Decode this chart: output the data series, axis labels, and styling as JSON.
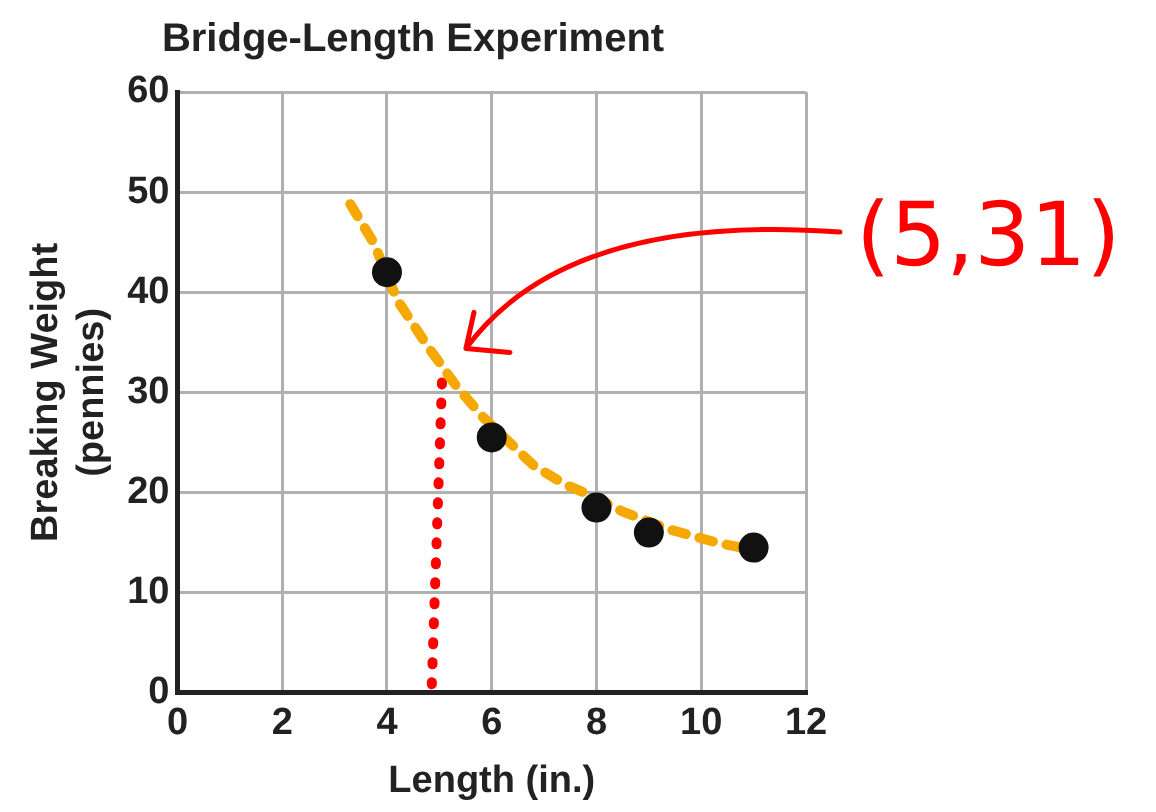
{
  "chart_data": {
    "type": "scatter",
    "title": "Bridge-Length Experiment",
    "xlabel": "Length (in.)",
    "ylabel": "Breaking Weight\n(pennies)",
    "xlim": [
      0,
      12
    ],
    "xticks": [
      0,
      2,
      4,
      6,
      8,
      10,
      12
    ],
    "ylim": [
      0,
      60
    ],
    "yticks": [
      0,
      10,
      20,
      30,
      40,
      50,
      60
    ],
    "grid": true,
    "legend": false,
    "series": [
      {
        "color": "#111111",
        "marker": "circle",
        "x": [
          4,
          6,
          8,
          9,
          11
        ],
        "values": [
          42,
          25.5,
          18.5,
          16,
          14.5
        ]
      },
      {
        "type": "line",
        "color": "#f5a800",
        "marker": "none",
        "line_style": "dashed",
        "x": [
          3.3,
          3.75,
          4.2,
          4.75,
          5.3,
          5.8,
          6.8,
          7.4,
          7.9,
          8.5,
          9.4,
          10.3,
          10.95
        ],
        "values": [
          48.8,
          44.9,
          39.2,
          34.8,
          30.8,
          27.7,
          22.7,
          20.8,
          19.7,
          18.1,
          16.3,
          15,
          14.3
        ]
      },
      {
        "type": "line",
        "color": "#ff0000",
        "marker": "none",
        "line_style": "dotted",
        "x": [
          5.05,
          4.85
        ],
        "values": [
          31,
          0
        ]
      }
    ],
    "annotations": [
      "(5,31)"
    ]
  }
}
